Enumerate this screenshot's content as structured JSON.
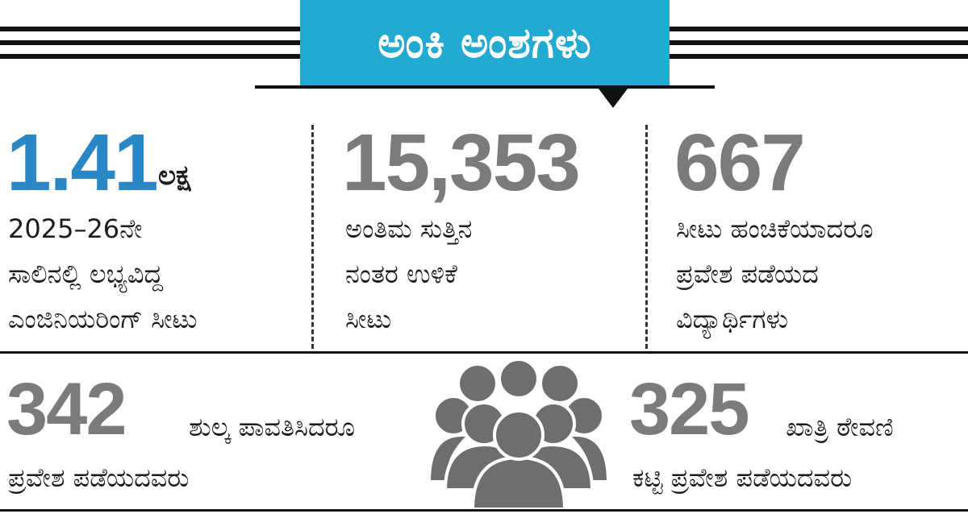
{
  "title": "ಅಂಕಿ ಅಂಶಗಳು",
  "colors": {
    "accent": "#22aad0",
    "highlight_number": "#2a86c4",
    "number_gray": "#7a7b7d",
    "icon_gray": "#6e6e6e"
  },
  "stats": [
    {
      "number": "1.41",
      "unit": "ಲಕ್ಷ",
      "lines": [
        "2025–26ನೇ",
        "ಸಾಲಿನಲ್ಲಿ ಲಭ್ಯವಿದ್ದ",
        "ಎಂಜಿನಿಯರಿಂಗ್ ಸೀಟು"
      ]
    },
    {
      "number": "15,353",
      "lines": [
        "ಅಂತಿಮ ಸುತ್ತಿನ",
        "ನಂತರ ಉಳಿಕೆ",
        "ಸೀಟು"
      ]
    },
    {
      "number": "667",
      "lines": [
        "ಸೀಟು ಹಂಚಿಕೆಯಾದರೂ",
        "ಪ್ರವೇಶ ಪಡೆಯದ",
        "ವಿದ್ಯಾರ್ಥಿಗಳು"
      ]
    },
    {
      "number": "342",
      "lines": [
        "ಶುಲ್ಕ ಪಾವತಿಸಿದರೂ",
        "ಪ್ರವೇಶ ಪಡೆಯದವರು"
      ]
    },
    {
      "number": "325",
      "lines": [
        "ಖಾತ್ರಿ ಠೇವಣಿ",
        "ಕಟ್ಟಿ ಪ್ರವೇಶ ಪಡೆಯದವರು"
      ]
    }
  ],
  "icon": "crowd-people-icon"
}
